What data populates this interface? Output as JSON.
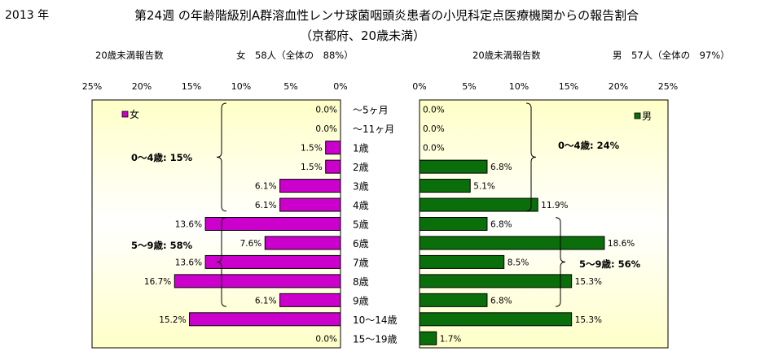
{
  "header": {
    "year": "2013 年",
    "title": "第24週 の年齢階級別A群溶血性レンサ球菌咽頭炎患者の小児科定点医療機関からの報告割合",
    "subtitle": "（京都府、20歳未満）",
    "left_label": "20歳未満報告数",
    "left_total": "女　58人（全体の　88%）",
    "right_label": "20歳未満報告数",
    "right_total": "男　57人（全体の　97%）"
  },
  "chart_data": {
    "type": "bar",
    "orientation": "horizontal",
    "categories": [
      "～5ヶ月",
      "～11ヶ月",
      "1歳",
      "2歳",
      "3歳",
      "4歳",
      "5歳",
      "6歳",
      "7歳",
      "8歳",
      "9歳",
      "10～14歳",
      "15～19歳"
    ],
    "xlim": [
      0,
      25
    ],
    "ticks": [
      "0%",
      "5%",
      "10%",
      "15%",
      "20%",
      "25%"
    ],
    "tick_values": [
      0,
      5,
      10,
      15,
      20,
      25
    ],
    "grid": false,
    "series": [
      {
        "name": "女",
        "color": "#cc00cc",
        "values": [
          0.0,
          0.0,
          1.5,
          1.5,
          6.1,
          6.1,
          13.6,
          7.6,
          13.6,
          16.7,
          6.1,
          15.2,
          0.0
        ],
        "labels": [
          "0.0%",
          "0.0%",
          "1.5%",
          "1.5%",
          "6.1%",
          "6.1%",
          "13.6%",
          "7.6%",
          "13.6%",
          "16.7%",
          "6.1%",
          "15.2%",
          "0.0%"
        ]
      },
      {
        "name": "男",
        "color": "#0a6e0a",
        "values": [
          0.0,
          0.0,
          0.0,
          6.8,
          5.1,
          11.9,
          6.8,
          18.6,
          8.5,
          15.3,
          6.8,
          15.3,
          1.7
        ],
        "labels": [
          "0.0%",
          "0.0%",
          "0.0%",
          "6.8%",
          "5.1%",
          "11.9%",
          "6.8%",
          "18.6%",
          "8.5%",
          "15.3%",
          "6.8%",
          "15.3%",
          "1.7%"
        ]
      }
    ],
    "annotations": {
      "female_0_4": "0～4歳: 15%",
      "female_5_9": "5～9歳: 58%",
      "male_0_4": "0～4歳: 24%",
      "male_5_9": "5～9歳: 56%"
    }
  },
  "colors": {
    "female": "#cc00cc",
    "male": "#0a6e0a",
    "plot_bg_edge": "#ffffc0",
    "plot_bg_center": "#ffffff"
  }
}
